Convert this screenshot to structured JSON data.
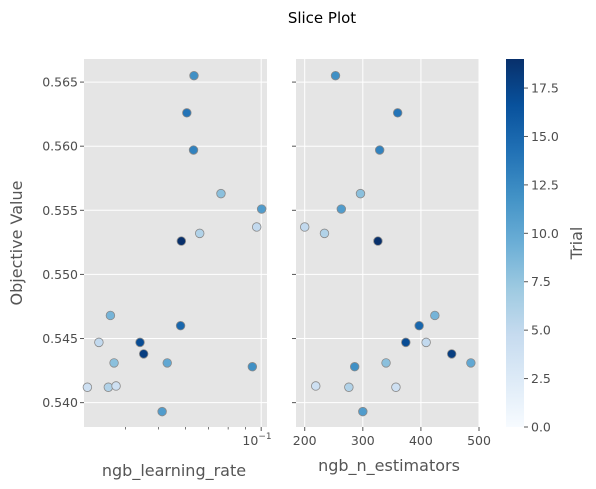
{
  "title": "Slice Plot",
  "colorbar": {
    "label": "Trial",
    "range": [
      0,
      19
    ],
    "ticks": [
      "0.0",
      "2.5",
      "5.0",
      "7.5",
      "10.0",
      "12.5",
      "15.0",
      "17.5"
    ],
    "tick_values": [
      0,
      2.5,
      5,
      7.5,
      10,
      12.5,
      15,
      17.5
    ],
    "colormap": "Blues"
  },
  "chart_data": [
    {
      "type": "scatter",
      "xlabel": "ngb_learning_rate",
      "ylabel": "Objective Value",
      "xscale": "log",
      "xlim": [
        0.0302,
        0.104
      ],
      "ylim": [
        0.5381,
        0.5668
      ],
      "x_ticks": [
        {
          "value": 0.1,
          "label": "10^-1"
        }
      ],
      "y_ticks": [
        "0.540",
        "0.545",
        "0.550",
        "0.555",
        "0.560",
        "0.565"
      ],
      "y_tick_values": [
        0.54,
        0.545,
        0.55,
        0.555,
        0.56,
        0.565
      ],
      "grid": true,
      "points": [
        {
          "x": 0.0334,
          "y": 0.5447,
          "trial": 5
        },
        {
          "x": 0.0309,
          "y": 0.5412,
          "trial": 4
        },
        {
          "x": 0.0356,
          "y": 0.5412,
          "trial": 6
        },
        {
          "x": 0.0361,
          "y": 0.5468,
          "trial": 9
        },
        {
          "x": 0.037,
          "y": 0.5431,
          "trial": 8
        },
        {
          "x": 0.0375,
          "y": 0.5413,
          "trial": 4
        },
        {
          "x": 0.0441,
          "y": 0.5447,
          "trial": 17
        },
        {
          "x": 0.0452,
          "y": 0.5438,
          "trial": 18
        },
        {
          "x": 0.0512,
          "y": 0.5393,
          "trial": 11
        },
        {
          "x": 0.053,
          "y": 0.5431,
          "trial": 10
        },
        {
          "x": 0.0583,
          "y": 0.5526,
          "trial": 19
        },
        {
          "x": 0.058,
          "y": 0.546,
          "trial": 15
        },
        {
          "x": 0.0605,
          "y": 0.5626,
          "trial": 14
        },
        {
          "x": 0.0633,
          "y": 0.5597,
          "trial": 13
        },
        {
          "x": 0.0635,
          "y": 0.5655,
          "trial": 12
        },
        {
          "x": 0.066,
          "y": 0.5532,
          "trial": 6
        },
        {
          "x": 0.0762,
          "y": 0.5563,
          "trial": 8
        },
        {
          "x": 0.0942,
          "y": 0.5428,
          "trial": 12
        },
        {
          "x": 0.097,
          "y": 0.5537,
          "trial": 5
        },
        {
          "x": 0.1003,
          "y": 0.5551,
          "trial": 11
        }
      ]
    },
    {
      "type": "scatter",
      "xlabel": "ngb_n_estimators",
      "ylabel": "",
      "xlim": [
        185,
        500
      ],
      "ylim": [
        0.5381,
        0.5668
      ],
      "x_ticks": [
        "200",
        "300",
        "400",
        "500"
      ],
      "x_tick_values": [
        200,
        300,
        400,
        500
      ],
      "grid": true,
      "points": [
        {
          "x": 200,
          "y": 0.5537,
          "trial": 5
        },
        {
          "x": 219,
          "y": 0.5413,
          "trial": 4
        },
        {
          "x": 234,
          "y": 0.5532,
          "trial": 6
        },
        {
          "x": 253,
          "y": 0.5655,
          "trial": 12
        },
        {
          "x": 263,
          "y": 0.5551,
          "trial": 11
        },
        {
          "x": 276,
          "y": 0.5412,
          "trial": 6
        },
        {
          "x": 286,
          "y": 0.5428,
          "trial": 12
        },
        {
          "x": 296,
          "y": 0.5563,
          "trial": 8
        },
        {
          "x": 300,
          "y": 0.5393,
          "trial": 11
        },
        {
          "x": 326,
          "y": 0.5526,
          "trial": 19
        },
        {
          "x": 329,
          "y": 0.5597,
          "trial": 13
        },
        {
          "x": 340,
          "y": 0.5431,
          "trial": 8
        },
        {
          "x": 357,
          "y": 0.5412,
          "trial": 4
        },
        {
          "x": 360,
          "y": 0.5626,
          "trial": 14
        },
        {
          "x": 374,
          "y": 0.5447,
          "trial": 17
        },
        {
          "x": 397,
          "y": 0.546,
          "trial": 15
        },
        {
          "x": 409,
          "y": 0.5447,
          "trial": 5
        },
        {
          "x": 424,
          "y": 0.5468,
          "trial": 9
        },
        {
          "x": 453,
          "y": 0.5438,
          "trial": 18
        },
        {
          "x": 486,
          "y": 0.5431,
          "trial": 10
        }
      ]
    }
  ]
}
